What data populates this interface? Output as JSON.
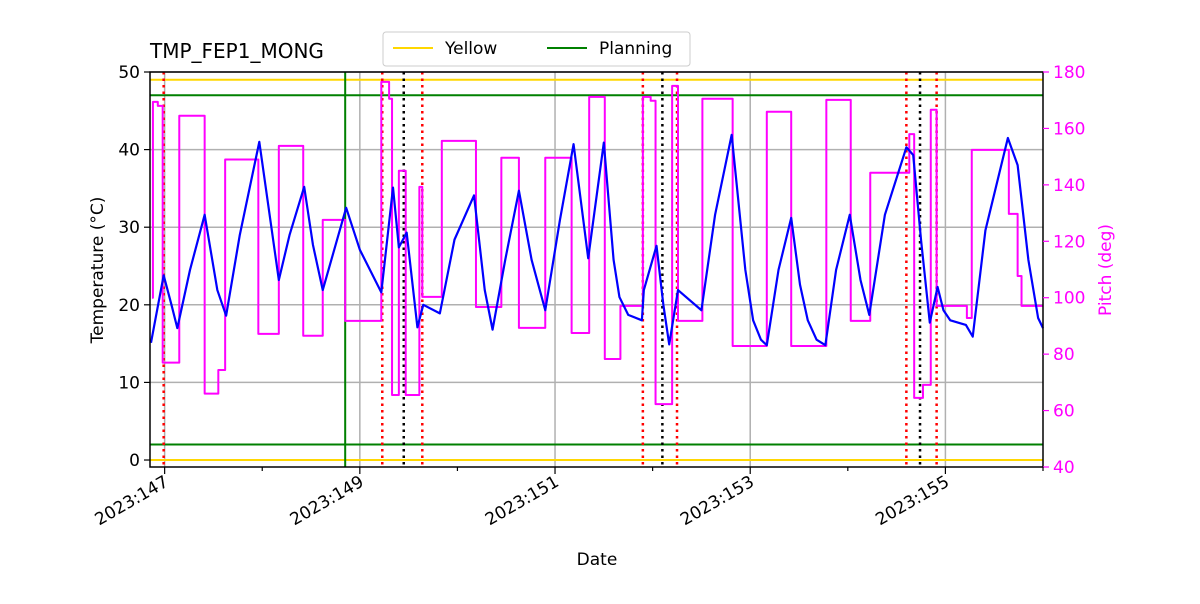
{
  "chart_data": {
    "type": "line",
    "title": "TMP_FEP1_MONG",
    "xlabel": "Date",
    "ylabel": "Temperature ($^\\circ$C)",
    "ylabel_display": "Temperature (°C)",
    "ylabel_right": "Pitch (deg)",
    "xlim": [
      146.85,
      156.0
    ],
    "ylim": [
      -0.9,
      50
    ],
    "ylim_right": [
      40,
      180
    ],
    "x_ticks": [
      147,
      148,
      149,
      150,
      151,
      152,
      153,
      154,
      155,
      156
    ],
    "x_tick_labels": [
      {
        "value": 147,
        "label": "2023:147"
      },
      {
        "value": 149,
        "label": "2023:149"
      },
      {
        "value": 151,
        "label": "2023:151"
      },
      {
        "value": 153,
        "label": "2023:153"
      },
      {
        "value": 155,
        "label": "2023:155"
      }
    ],
    "y_ticks": [
      0,
      10,
      20,
      30,
      40,
      50
    ],
    "y_ticks_right": [
      40,
      60,
      80,
      100,
      120,
      140,
      160,
      180
    ],
    "grid": true,
    "legend": {
      "placement": "top-center",
      "entries": [
        {
          "name": "Yellow",
          "color": "#ffd700"
        },
        {
          "name": "Planning",
          "color": "#008000"
        }
      ]
    },
    "limit_lines": [
      {
        "legend": "Yellow",
        "value": 49,
        "color": "#ffd700"
      },
      {
        "legend": "Yellow",
        "value": 0,
        "color": "#ffd700"
      },
      {
        "legend": "Planning",
        "value": 47,
        "color": "#008000"
      },
      {
        "legend": "Planning",
        "value": 2,
        "color": "#008000"
      }
    ],
    "vertical_lines": [
      {
        "x": 148.85,
        "color": "#008000",
        "style": "solid"
      },
      {
        "x": 146.99,
        "color": "#ff0000",
        "style": "dotted"
      },
      {
        "x": 149.23,
        "color": "#ff0000",
        "style": "dotted"
      },
      {
        "x": 149.64,
        "color": "#ff0000",
        "style": "dotted"
      },
      {
        "x": 151.9,
        "color": "#ff0000",
        "style": "dotted"
      },
      {
        "x": 152.25,
        "color": "#ff0000",
        "style": "dotted"
      },
      {
        "x": 154.6,
        "color": "#ff0000",
        "style": "dotted"
      },
      {
        "x": 154.91,
        "color": "#ff0000",
        "style": "dotted"
      },
      {
        "x": 149.45,
        "color": "#000000",
        "style": "dotted"
      },
      {
        "x": 152.1,
        "color": "#000000",
        "style": "dotted"
      },
      {
        "x": 154.74,
        "color": "#000000",
        "style": "dotted"
      }
    ],
    "series": [
      {
        "axis": "left",
        "color": "#0000ff",
        "points": [
          [
            146.86,
            15.1
          ],
          [
            146.99,
            23.8
          ],
          [
            147.07,
            20.0
          ],
          [
            147.13,
            17.0
          ],
          [
            147.26,
            24.5
          ],
          [
            147.41,
            31.6
          ],
          [
            147.54,
            21.9
          ],
          [
            147.63,
            18.6
          ],
          [
            147.77,
            29.0
          ],
          [
            147.97,
            41.0
          ],
          [
            148.17,
            23.2
          ],
          [
            148.28,
            29.0
          ],
          [
            148.43,
            35.2
          ],
          [
            148.52,
            27.7
          ],
          [
            148.62,
            21.9
          ],
          [
            148.86,
            32.5
          ],
          [
            149.0,
            27.1
          ],
          [
            149.22,
            21.6
          ],
          [
            149.34,
            35.1
          ],
          [
            149.4,
            27.4
          ],
          [
            149.48,
            29.3
          ],
          [
            149.59,
            17.1
          ],
          [
            149.65,
            20.0
          ],
          [
            149.82,
            18.9
          ],
          [
            149.97,
            28.4
          ],
          [
            150.17,
            34.1
          ],
          [
            150.28,
            21.9
          ],
          [
            150.36,
            16.8
          ],
          [
            150.49,
            25.8
          ],
          [
            150.63,
            34.7
          ],
          [
            150.76,
            25.8
          ],
          [
            150.9,
            19.3
          ],
          [
            151.05,
            30.9
          ],
          [
            151.19,
            40.7
          ],
          [
            151.34,
            26.0
          ],
          [
            151.5,
            40.9
          ],
          [
            151.6,
            25.8
          ],
          [
            151.66,
            21.0
          ],
          [
            151.75,
            18.7
          ],
          [
            151.89,
            18.0
          ],
          [
            151.91,
            21.9
          ],
          [
            152.04,
            27.6
          ],
          [
            152.11,
            20.0
          ],
          [
            152.17,
            14.9
          ],
          [
            152.26,
            21.9
          ],
          [
            152.5,
            19.3
          ],
          [
            152.64,
            31.6
          ],
          [
            152.81,
            41.9
          ],
          [
            152.95,
            24.5
          ],
          [
            153.03,
            18.0
          ],
          [
            153.11,
            15.5
          ],
          [
            153.17,
            14.8
          ],
          [
            153.29,
            24.5
          ],
          [
            153.42,
            31.2
          ],
          [
            153.51,
            22.6
          ],
          [
            153.59,
            18.0
          ],
          [
            153.68,
            15.5
          ],
          [
            153.77,
            14.8
          ],
          [
            153.88,
            24.5
          ],
          [
            154.02,
            31.6
          ],
          [
            154.13,
            23.2
          ],
          [
            154.22,
            18.7
          ],
          [
            154.38,
            31.6
          ],
          [
            154.6,
            40.3
          ],
          [
            154.67,
            39.3
          ],
          [
            154.75,
            28.4
          ],
          [
            154.84,
            17.7
          ],
          [
            154.92,
            22.3
          ],
          [
            154.98,
            19.3
          ],
          [
            155.05,
            18.0
          ],
          [
            155.21,
            17.4
          ],
          [
            155.28,
            15.9
          ],
          [
            155.41,
            29.6
          ],
          [
            155.64,
            41.5
          ],
          [
            155.74,
            38.0
          ],
          [
            155.85,
            25.8
          ],
          [
            155.95,
            18.3
          ],
          [
            156.0,
            17.0
          ]
        ]
      },
      {
        "axis": "right",
        "color": "#ff00ff",
        "drawstyle": "steps-post",
        "points": [
          [
            146.87,
            100
          ],
          [
            146.88,
            169.4
          ],
          [
            146.93,
            168
          ],
          [
            146.98,
            77
          ],
          [
            147.15,
            164.5
          ],
          [
            147.41,
            66
          ],
          [
            147.55,
            74.4
          ],
          [
            147.62,
            149
          ],
          [
            147.96,
            87.2
          ],
          [
            148.17,
            153.8
          ],
          [
            148.42,
            86.5
          ],
          [
            148.62,
            127.6
          ],
          [
            148.85,
            91.8
          ],
          [
            149.22,
            176.5
          ],
          [
            149.3,
            170.5
          ],
          [
            149.33,
            65.5
          ],
          [
            149.4,
            145
          ],
          [
            149.47,
            65.5
          ],
          [
            149.61,
            139.3
          ],
          [
            149.64,
            100.3
          ],
          [
            149.84,
            155.6
          ],
          [
            150.19,
            96.7
          ],
          [
            150.45,
            149.6
          ],
          [
            150.63,
            89.3
          ],
          [
            150.9,
            149.6
          ],
          [
            151.17,
            87.5
          ],
          [
            151.35,
            171.2
          ],
          [
            151.51,
            78.3
          ],
          [
            151.67,
            97.1
          ],
          [
            151.9,
            171.2
          ],
          [
            151.98,
            169.8
          ],
          [
            152.03,
            62.3
          ],
          [
            152.2,
            175.1
          ],
          [
            152.26,
            91.8
          ],
          [
            152.51,
            170.5
          ],
          [
            152.82,
            82.9
          ],
          [
            153.17,
            165.9
          ],
          [
            153.42,
            82.9
          ],
          [
            153.78,
            170.1
          ],
          [
            154.03,
            91.8
          ],
          [
            154.23,
            144.3
          ],
          [
            154.63,
            158
          ],
          [
            154.68,
            64.5
          ],
          [
            154.77,
            69.1
          ],
          [
            154.85,
            166.6
          ],
          [
            154.91,
            97.1
          ],
          [
            155.22,
            92.8
          ],
          [
            155.27,
            152.4
          ],
          [
            155.65,
            129.7
          ],
          [
            155.74,
            107.7
          ],
          [
            155.78,
            97.1
          ],
          [
            156.0,
            97.1
          ]
        ]
      }
    ]
  }
}
